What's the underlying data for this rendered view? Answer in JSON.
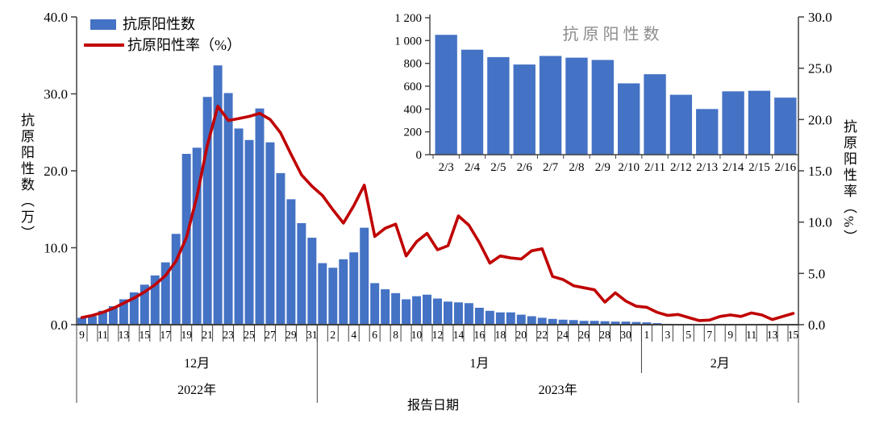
{
  "colors": {
    "bar": "#4472C4",
    "line": "#C00000",
    "axis": "#404040",
    "text": "#000000",
    "inset_title": "#8c8c8c",
    "background": "#ffffff"
  },
  "legend": {
    "items": [
      {
        "label": "抗原阳性数",
        "swatch": "bar-swatch"
      },
      {
        "label": "抗原阳性率（%）",
        "swatch": "line-swatch"
      }
    ]
  },
  "axes": {
    "left_label": "抗原阳性数（万）",
    "right_label": "抗原阳性率（%）",
    "x_label": "报告日期"
  },
  "chart_data": [
    {
      "id": "main",
      "type": "bar",
      "title": "",
      "xlabel": "报告日期",
      "ylabel_left": "抗原阳性数（万）",
      "ylim_left": [
        0,
        40
      ],
      "yticks_left": [
        "0.0",
        "10.0",
        "20.0",
        "30.0",
        "40.0"
      ],
      "ylabel_right": "抗原阳性率（%）",
      "ylim_right": [
        0,
        30
      ],
      "yticks_right": [
        "0.0",
        "5.0",
        "10.0",
        "15.0",
        "20.0",
        "25.0",
        "30.0"
      ],
      "grid": false,
      "legend_position": "top-left",
      "x_label_every": 2,
      "x_categories": [
        "9",
        "10",
        "11",
        "12",
        "13",
        "14",
        "15",
        "16",
        "17",
        "18",
        "19",
        "20",
        "21",
        "22",
        "23",
        "24",
        "25",
        "26",
        "27",
        "28",
        "29",
        "30",
        "31",
        "1",
        "2",
        "3",
        "4",
        "5",
        "6",
        "7",
        "8",
        "9",
        "10",
        "11",
        "12",
        "13",
        "14",
        "15",
        "16",
        "17",
        "18",
        "19",
        "20",
        "21",
        "22",
        "23",
        "24",
        "25",
        "26",
        "27",
        "28",
        "29",
        "30",
        "31",
        "1",
        "2",
        "3",
        "4",
        "5",
        "6",
        "7",
        "8",
        "9",
        "10",
        "11",
        "12",
        "13",
        "14",
        "15"
      ],
      "month_groups": [
        {
          "label": "12月",
          "start": 0,
          "end": 23
        },
        {
          "label": "1月",
          "start": 23,
          "end": 54
        },
        {
          "label": "2月",
          "start": 54,
          "end": 69
        }
      ],
      "year_groups": [
        {
          "label": "2022年",
          "start": 0,
          "end": 23
        },
        {
          "label": "2023年",
          "start": 23,
          "end": 69
        }
      ],
      "series": [
        {
          "name": "抗原阳性数",
          "kind": "bar",
          "axis": "left",
          "color": "#4472C4",
          "values": [
            0.9,
            1.1,
            1.8,
            2.4,
            3.3,
            4.2,
            5.2,
            6.4,
            8.1,
            11.8,
            22.2,
            23.0,
            29.6,
            33.7,
            30.1,
            25.5,
            24.0,
            28.1,
            23.7,
            19.7,
            16.3,
            13.2,
            11.3,
            8.0,
            7.4,
            8.5,
            9.4,
            12.6,
            5.4,
            4.6,
            4.1,
            3.3,
            3.7,
            3.9,
            3.4,
            3.0,
            2.9,
            2.8,
            2.2,
            1.8,
            1.6,
            1.6,
            1.3,
            1.1,
            0.9,
            0.75,
            0.65,
            0.6,
            0.5,
            0.5,
            0.45,
            0.4,
            0.4,
            0.35,
            0.3,
            0.2,
            0.11,
            0.09,
            0.09,
            0.08,
            0.09,
            0.09,
            0.08,
            0.06,
            0.07,
            0.05,
            0.04,
            0.06,
            0.06
          ]
        },
        {
          "name": "抗原阳性率（%）",
          "kind": "line",
          "axis": "right",
          "color": "#C00000",
          "values": [
            0.7,
            0.9,
            1.2,
            1.6,
            2.1,
            2.6,
            3.2,
            3.9,
            4.8,
            6.2,
            8.5,
            12.5,
            17.5,
            21.3,
            19.9,
            20.1,
            20.3,
            20.6,
            20.0,
            18.7,
            16.6,
            14.6,
            13.5,
            12.6,
            11.2,
            9.9,
            11.6,
            13.6,
            8.6,
            9.4,
            9.8,
            6.7,
            8.1,
            8.9,
            7.3,
            7.7,
            10.6,
            9.7,
            8.0,
            6.0,
            6.7,
            6.5,
            6.4,
            7.2,
            7.4,
            4.7,
            4.4,
            3.8,
            3.6,
            3.4,
            2.2,
            3.1,
            2.3,
            1.8,
            1.7,
            1.2,
            0.9,
            1.0,
            0.7,
            0.4,
            0.45,
            0.8,
            0.95,
            0.8,
            1.15,
            0.95,
            0.5,
            0.8,
            1.1
          ]
        }
      ]
    },
    {
      "id": "inset",
      "type": "bar",
      "title": "抗原阳性数",
      "categories": [
        "2/3",
        "2/4",
        "2/5",
        "2/6",
        "2/7",
        "2/8",
        "2/9",
        "2/10",
        "2/11",
        "2/12",
        "2/13",
        "2/14",
        "2/15",
        "2/16"
      ],
      "values": [
        1050,
        920,
        855,
        790,
        865,
        850,
        830,
        625,
        705,
        525,
        400,
        555,
        560,
        500
      ],
      "ylim": [
        0,
        1200
      ],
      "yticks": [
        "0",
        "200",
        "400",
        "600",
        "800",
        "1 000",
        "1 200"
      ],
      "grid": false,
      "color": "#4472C4"
    }
  ]
}
